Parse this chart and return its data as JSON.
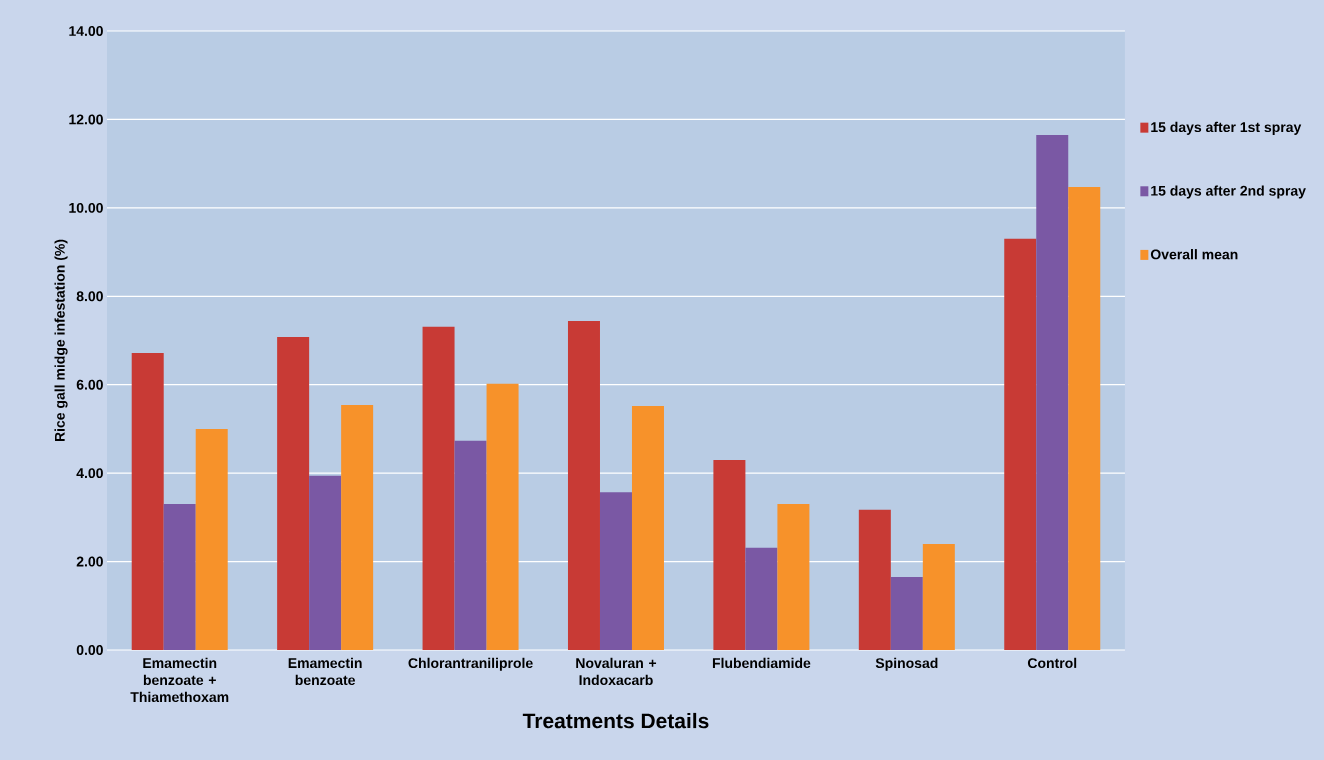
{
  "chart_data": {
    "type": "bar",
    "xlabel": "Treatments Details",
    "ylabel": "Rice gall midge infestation (%)",
    "categories": [
      "Emamectin benzoate + Thiamethoxam",
      "Emamectin benzoate",
      "Chlorantraniliprole",
      "Novaluran + Indoxacarb",
      "Flubendiamide",
      "Spinosad",
      "Control"
    ],
    "series": [
      {
        "name": "15 days after 1st spray",
        "color": "#c83a35",
        "values": [
          6.72,
          7.08,
          7.31,
          7.44,
          4.3,
          3.17,
          9.3
        ]
      },
      {
        "name": "15 days after 2nd spray",
        "color": "#7a58a4",
        "values": [
          3.3,
          3.94,
          4.73,
          3.57,
          2.31,
          1.65,
          11.65
        ]
      },
      {
        "name": "Overall mean",
        "color": "#f7922a",
        "values": [
          5.0,
          5.54,
          6.02,
          5.52,
          3.3,
          2.4,
          10.47
        ]
      }
    ],
    "ylim": [
      0,
      14
    ],
    "yticks": [
      {
        "value": 0,
        "label": "0.00"
      },
      {
        "value": 2,
        "label": "2.00"
      },
      {
        "value": 4,
        "label": "4.00"
      },
      {
        "value": 6,
        "label": "6.00"
      },
      {
        "value": 8,
        "label": "8.00"
      },
      {
        "value": 10,
        "label": "10.00"
      },
      {
        "value": 12,
        "label": "12.00"
      },
      {
        "value": 14,
        "label": "14.00"
      }
    ],
    "grid": "y",
    "legend": "right"
  }
}
